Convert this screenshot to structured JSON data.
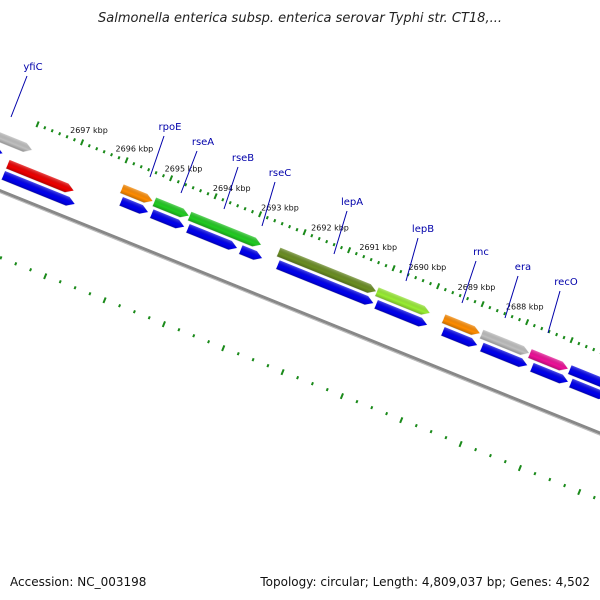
{
  "title": "Salmonella enterica subsp. enterica serovar Typhi str. CT18,...",
  "footer": {
    "accession": "Accession: NC_003198",
    "summary": "Topology: circular; Length: 4,809,037 bp; Genes: 4,502"
  },
  "colors": {
    "backbone": "#888888",
    "tick": "#1a8a1a",
    "label_line": "#0000aa",
    "cds": "#0000ee",
    "grey": "#c0c0c0",
    "red": "#ee0000",
    "orange": "#ff8c00",
    "green": "#22cc22",
    "olive": "#6b8e23",
    "lime": "#99ee33",
    "magenta": "#ee1199"
  },
  "gene_labels": [
    {
      "text": "yfiC"
    },
    {
      "text": "rpoE"
    },
    {
      "text": "rseA"
    },
    {
      "text": "rseB"
    },
    {
      "text": "rseC"
    },
    {
      "text": "lepA"
    },
    {
      "text": "lepB"
    },
    {
      "text": "rnc"
    },
    {
      "text": "era"
    },
    {
      "text": "recO"
    }
  ],
  "kbp_labels": [
    "2697 kbp",
    "2696 kbp",
    "2695 kbp",
    "2694 kbp",
    "2693 kbp",
    "2692 kbp",
    "2691 kbp",
    "2690 kbp",
    "2689 kbp",
    "2688 kbp"
  ]
}
